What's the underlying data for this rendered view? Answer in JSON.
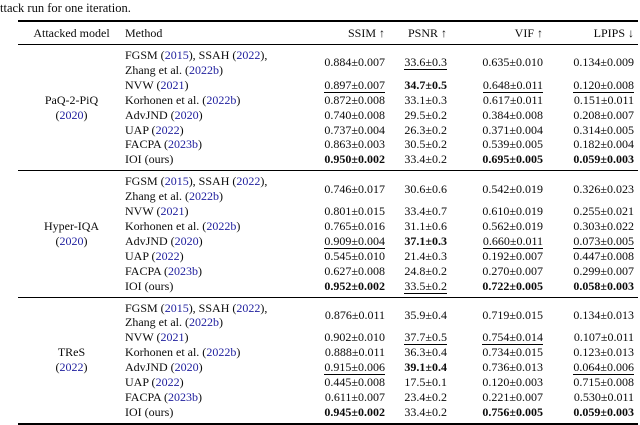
{
  "caption": "ttack run for one iteration.",
  "table": {
    "headers": {
      "model": "Attacked model",
      "method": "Method",
      "ssim": "SSIM ↑",
      "psnr": "PSNR ↑",
      "vif": "VIF ↑",
      "lpips": "LPIPS ↓"
    },
    "citation_color": "#21219f",
    "style_legend": {
      "n": "normal",
      "b": "bold (best)",
      "u": "underline (second best)"
    },
    "groups": [
      {
        "model_lines": [
          "PaQ-2-PiQ",
          "(2020)"
        ],
        "rows": [
          {
            "method_lines": [
              "FGSM (2015), SSAH (2022),",
              "Zhang et al. (2022b)"
            ],
            "cells": [
              {
                "v": "0.884±0.007",
                "s": "n"
              },
              {
                "v": "33.6±0.3",
                "s": "u"
              },
              {
                "v": "0.635±0.010",
                "s": "n"
              },
              {
                "v": "0.134±0.009",
                "s": "n"
              }
            ]
          },
          {
            "method_lines": [
              "NVW (2021)"
            ],
            "cells": [
              {
                "v": "0.897±0.007",
                "s": "u"
              },
              {
                "v": "34.7±0.5",
                "s": "b"
              },
              {
                "v": "0.648±0.011",
                "s": "u"
              },
              {
                "v": "0.120±0.008",
                "s": "u"
              }
            ]
          },
          {
            "method_lines": [
              "Korhonen et al. (2022b)"
            ],
            "cells": [
              {
                "v": "0.872±0.008",
                "s": "n"
              },
              {
                "v": "33.1±0.3",
                "s": "n"
              },
              {
                "v": "0.617±0.011",
                "s": "n"
              },
              {
                "v": "0.151±0.011",
                "s": "n"
              }
            ]
          },
          {
            "method_lines": [
              "AdvJND (2020)"
            ],
            "cells": [
              {
                "v": "0.740±0.008",
                "s": "n"
              },
              {
                "v": "29.5±0.2",
                "s": "n"
              },
              {
                "v": "0.384±0.008",
                "s": "n"
              },
              {
                "v": "0.208±0.007",
                "s": "n"
              }
            ]
          },
          {
            "method_lines": [
              "UAP (2022)"
            ],
            "cells": [
              {
                "v": "0.737±0.004",
                "s": "n"
              },
              {
                "v": "26.3±0.2",
                "s": "n"
              },
              {
                "v": "0.371±0.004",
                "s": "n"
              },
              {
                "v": "0.314±0.005",
                "s": "n"
              }
            ]
          },
          {
            "method_lines": [
              "FACPA (2023b)"
            ],
            "cells": [
              {
                "v": "0.863±0.003",
                "s": "n"
              },
              {
                "v": "30.5±0.2",
                "s": "n"
              },
              {
                "v": "0.539±0.005",
                "s": "n"
              },
              {
                "v": "0.182±0.004",
                "s": "n"
              }
            ]
          },
          {
            "method_lines": [
              "IOI (ours)"
            ],
            "cells": [
              {
                "v": "0.950±0.002",
                "s": "b"
              },
              {
                "v": "33.4±0.2",
                "s": "n"
              },
              {
                "v": "0.695±0.005",
                "s": "b"
              },
              {
                "v": "0.059±0.003",
                "s": "b"
              }
            ]
          }
        ]
      },
      {
        "model_lines": [
          "Hyper-IQA",
          "(2020)"
        ],
        "rows": [
          {
            "method_lines": [
              "FGSM (2015), SSAH (2022),",
              "Zhang et al. (2022b)"
            ],
            "cells": [
              {
                "v": "0.746±0.017",
                "s": "n"
              },
              {
                "v": "30.6±0.6",
                "s": "n"
              },
              {
                "v": "0.542±0.019",
                "s": "n"
              },
              {
                "v": "0.326±0.023",
                "s": "n"
              }
            ]
          },
          {
            "method_lines": [
              "NVW (2021)"
            ],
            "cells": [
              {
                "v": "0.801±0.015",
                "s": "n"
              },
              {
                "v": "33.4±0.7",
                "s": "n"
              },
              {
                "v": "0.610±0.019",
                "s": "n"
              },
              {
                "v": "0.255±0.021",
                "s": "n"
              }
            ]
          },
          {
            "method_lines": [
              "Korhonen et al. (2022b)"
            ],
            "cells": [
              {
                "v": "0.765±0.016",
                "s": "n"
              },
              {
                "v": "31.1±0.6",
                "s": "n"
              },
              {
                "v": "0.562±0.019",
                "s": "n"
              },
              {
                "v": "0.303±0.022",
                "s": "n"
              }
            ]
          },
          {
            "method_lines": [
              "AdvJND (2020)"
            ],
            "cells": [
              {
                "v": "0.909±0.004",
                "s": "u"
              },
              {
                "v": "37.1±0.3",
                "s": "b"
              },
              {
                "v": "0.660±0.011",
                "s": "u"
              },
              {
                "v": "0.073±0.005",
                "s": "u"
              }
            ]
          },
          {
            "method_lines": [
              "UAP (2022)"
            ],
            "cells": [
              {
                "v": "0.545±0.010",
                "s": "n"
              },
              {
                "v": "21.4±0.3",
                "s": "n"
              },
              {
                "v": "0.192±0.007",
                "s": "n"
              },
              {
                "v": "0.447±0.008",
                "s": "n"
              }
            ]
          },
          {
            "method_lines": [
              "FACPA (2023b)"
            ],
            "cells": [
              {
                "v": "0.627±0.008",
                "s": "n"
              },
              {
                "v": "24.8±0.2",
                "s": "n"
              },
              {
                "v": "0.270±0.007",
                "s": "n"
              },
              {
                "v": "0.299±0.007",
                "s": "n"
              }
            ]
          },
          {
            "method_lines": [
              "IOI (ours)"
            ],
            "cells": [
              {
                "v": "0.952±0.002",
                "s": "b"
              },
              {
                "v": "33.5±0.2",
                "s": "u"
              },
              {
                "v": "0.722±0.005",
                "s": "b"
              },
              {
                "v": "0.058±0.003",
                "s": "b"
              }
            ]
          }
        ]
      },
      {
        "model_lines": [
          "TReS",
          "(2022)"
        ],
        "rows": [
          {
            "method_lines": [
              "FGSM (2015), SSAH (2022),",
              "Zhang et al. (2022b)"
            ],
            "cells": [
              {
                "v": "0.876±0.011",
                "s": "n"
              },
              {
                "v": "35.9±0.4",
                "s": "n"
              },
              {
                "v": "0.719±0.015",
                "s": "n"
              },
              {
                "v": "0.134±0.013",
                "s": "n"
              }
            ]
          },
          {
            "method_lines": [
              "NVW (2021)"
            ],
            "cells": [
              {
                "v": "0.902±0.010",
                "s": "n"
              },
              {
                "v": "37.7±0.5",
                "s": "u"
              },
              {
                "v": "0.754±0.014",
                "s": "u"
              },
              {
                "v": "0.107±0.011",
                "s": "n"
              }
            ]
          },
          {
            "method_lines": [
              "Korhonen et al. (2022b)"
            ],
            "cells": [
              {
                "v": "0.888±0.011",
                "s": "n"
              },
              {
                "v": "36.3±0.4",
                "s": "n"
              },
              {
                "v": "0.734±0.015",
                "s": "n"
              },
              {
                "v": "0.123±0.013",
                "s": "n"
              }
            ]
          },
          {
            "method_lines": [
              "AdvJND (2020)"
            ],
            "cells": [
              {
                "v": "0.915±0.006",
                "s": "u"
              },
              {
                "v": "39.1±0.4",
                "s": "b"
              },
              {
                "v": "0.736±0.013",
                "s": "n"
              },
              {
                "v": "0.064±0.006",
                "s": "u"
              }
            ]
          },
          {
            "method_lines": [
              "UAP (2022)"
            ],
            "cells": [
              {
                "v": "0.445±0.008",
                "s": "n"
              },
              {
                "v": "17.5±0.1",
                "s": "n"
              },
              {
                "v": "0.120±0.003",
                "s": "n"
              },
              {
                "v": "0.715±0.008",
                "s": "n"
              }
            ]
          },
          {
            "method_lines": [
              "FACPA (2023b)"
            ],
            "cells": [
              {
                "v": "0.611±0.007",
                "s": "n"
              },
              {
                "v": "23.4±0.2",
                "s": "n"
              },
              {
                "v": "0.221±0.007",
                "s": "n"
              },
              {
                "v": "0.530±0.011",
                "s": "n"
              }
            ]
          },
          {
            "method_lines": [
              "IOI (ours)"
            ],
            "cells": [
              {
                "v": "0.945±0.002",
                "s": "b"
              },
              {
                "v": "33.4±0.2",
                "s": "n"
              },
              {
                "v": "0.756±0.005",
                "s": "b"
              },
              {
                "v": "0.059±0.003",
                "s": "b"
              }
            ]
          }
        ]
      }
    ]
  }
}
